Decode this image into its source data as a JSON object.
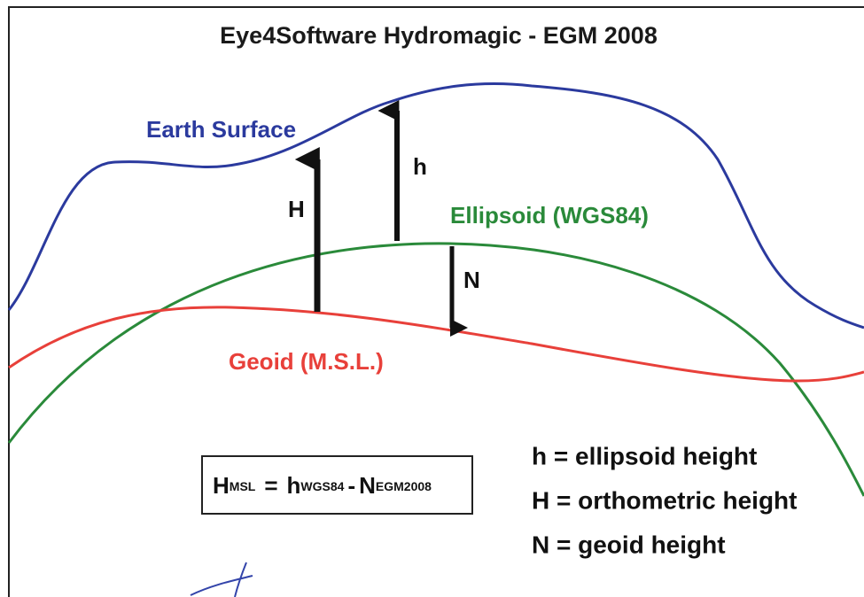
{
  "title": "Eye4Software Hydromagic - EGM 2008",
  "curves": {
    "earth": "Earth Surface",
    "ellipsoid": "Ellipsoid (WGS84)",
    "geoid": "Geoid (M.S.L.)"
  },
  "arrows": {
    "orthometric": "H",
    "ellipsoidal": "h",
    "geoid": "N"
  },
  "formula": [
    "H",
    "MSL",
    "=",
    "h",
    "WGS84",
    "-",
    "N",
    "EGM2008"
  ],
  "legend": [
    "h = ellipsoid height",
    "H = orthometric height",
    "N = geoid height"
  ]
}
